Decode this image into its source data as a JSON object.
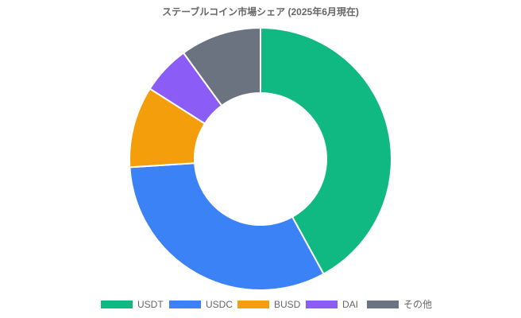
{
  "chart_data": {
    "type": "doughnut",
    "title": "ステーブルコイン市場シェア (2025年6月現在)",
    "categories": [
      "USDT",
      "USDC",
      "BUSD",
      "DAI",
      "その他"
    ],
    "values": [
      42,
      32,
      10,
      6,
      10
    ],
    "colors": [
      "#10b981",
      "#3b82f6",
      "#f59e0b",
      "#8b5cf6",
      "#6b7280"
    ],
    "legend": "bottom"
  }
}
